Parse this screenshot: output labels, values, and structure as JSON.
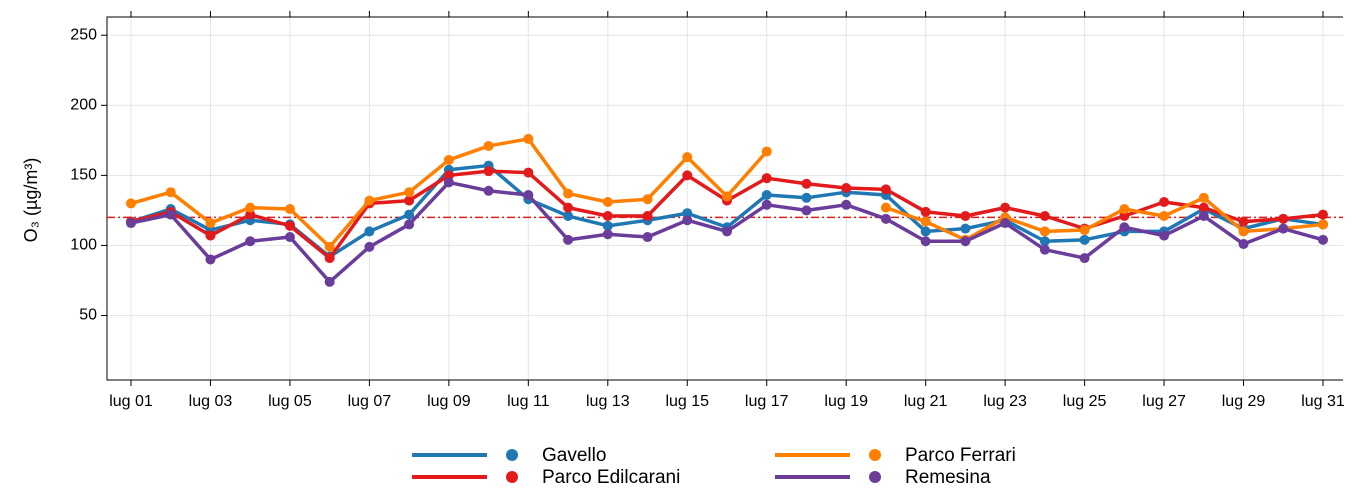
{
  "chart_data": {
    "type": "line",
    "y_label": "O₃ (µg/m³)",
    "categories": [
      "lug 01",
      null,
      "lug 03",
      null,
      "lug 05",
      null,
      "lug 07",
      null,
      "lug 09",
      null,
      "lug 11",
      null,
      "lug 13",
      null,
      "lug 15",
      null,
      "lug 17",
      null,
      "lug 19",
      null,
      "lug 21",
      null,
      "lug 23",
      null,
      "lug 25",
      null,
      "lug 27",
      null,
      "lug 29",
      null,
      "lug 31"
    ],
    "ylim": [
      4,
      263
    ],
    "yticks": [
      50,
      100,
      150,
      200,
      250
    ],
    "grid": true,
    "reference_line": 120,
    "reference_color": "#e31a1c",
    "series": [
      {
        "name": "Gavello",
        "color": "#1f78b4",
        "values": [
          117,
          126,
          111,
          118,
          115,
          92,
          110,
          122,
          154,
          157,
          133,
          121,
          114,
          118,
          123,
          113,
          136,
          134,
          138,
          136,
          110,
          112,
          118,
          103,
          104,
          110,
          110,
          126,
          112,
          119,
          115
        ]
      },
      {
        "name": "Parco Edilcarani",
        "color": "#e31a1c",
        "values": [
          117,
          124,
          107,
          122,
          114,
          91,
          130,
          132,
          150,
          153,
          152,
          127,
          121,
          121,
          150,
          132,
          148,
          144,
          141,
          140,
          124,
          121,
          127,
          121,
          112,
          121,
          131,
          127,
          117,
          119,
          122
        ]
      },
      {
        "name": "Parco Ferrari",
        "color": "#ff7f00",
        "values": [
          130,
          138,
          116,
          127,
          126,
          99,
          132,
          138,
          161,
          171,
          176,
          137,
          131,
          133,
          163,
          135,
          167,
          null,
          null,
          127,
          117,
          104,
          120,
          110,
          111,
          126,
          121,
          134,
          110,
          112,
          115
        ]
      },
      {
        "name": "Remesina",
        "color": "#6a3d9a",
        "values": [
          116,
          122,
          90,
          103,
          106,
          74,
          99,
          115,
          145,
          139,
          136,
          104,
          108,
          106,
          118,
          110,
          129,
          125,
          129,
          119,
          103,
          103,
          116,
          97,
          91,
          113,
          107,
          121,
          101,
          112,
          104
        ]
      }
    ]
  }
}
